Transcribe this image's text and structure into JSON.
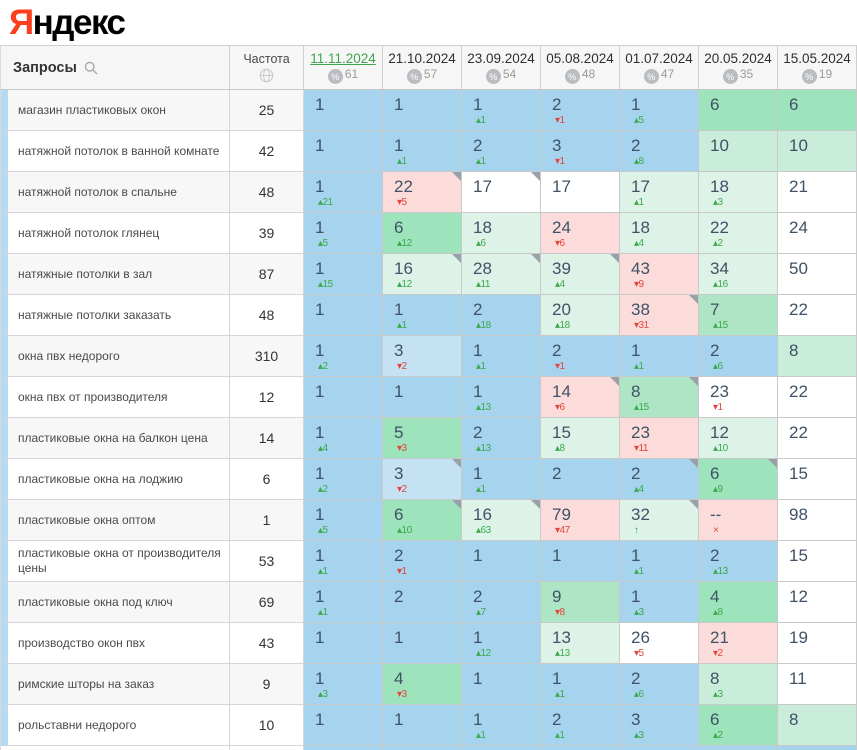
{
  "logo": {
    "first_letter": "Я",
    "rest": "ндекс"
  },
  "table": {
    "query_header": "Запросы",
    "frequency_header": "Частота",
    "dates": [
      {
        "label": "11.11.2024",
        "visibility": "61",
        "active": true
      },
      {
        "label": "21.10.2024",
        "visibility": "57",
        "active": false
      },
      {
        "label": "23.09.2024",
        "visibility": "54",
        "active": false
      },
      {
        "label": "05.08.2024",
        "visibility": "48",
        "active": false
      },
      {
        "label": "01.07.2024",
        "visibility": "47",
        "active": false
      },
      {
        "label": "20.05.2024",
        "visibility": "35",
        "active": false
      },
      {
        "label": "15.05.2024",
        "visibility": "19",
        "active": false
      }
    ],
    "rows": [
      {
        "query": "магазин пластиковых окон",
        "frequency": "25",
        "cells": [
          {
            "v": "1",
            "bg": "b"
          },
          {
            "v": "1",
            "bg": "b"
          },
          {
            "v": "1",
            "d": "▴1",
            "dc": "up",
            "bg": "b"
          },
          {
            "v": "2",
            "d": "▾1",
            "dc": "down",
            "bg": "b"
          },
          {
            "v": "1",
            "d": "▴5",
            "dc": "up",
            "bg": "b"
          },
          {
            "v": "6",
            "bg": "g"
          },
          {
            "v": "6",
            "bg": "g"
          }
        ]
      },
      {
        "query": "натяжной потолок в ванной комнате",
        "frequency": "42",
        "cells": [
          {
            "v": "1",
            "bg": "b"
          },
          {
            "v": "1",
            "d": "▴1",
            "dc": "up",
            "bg": "b"
          },
          {
            "v": "2",
            "d": "▴1",
            "dc": "up",
            "bg": "b"
          },
          {
            "v": "3",
            "d": "▾1",
            "dc": "down",
            "bg": "b"
          },
          {
            "v": "2",
            "d": "▴8",
            "dc": "up",
            "bg": "b"
          },
          {
            "v": "10",
            "bg": "lg"
          },
          {
            "v": "10",
            "bg": "lg"
          }
        ]
      },
      {
        "query": "натяжной потолок в спальне",
        "frequency": "48",
        "cells": [
          {
            "v": "1",
            "d": "▴21",
            "dc": "up",
            "bg": "b"
          },
          {
            "v": "22",
            "d": "▾5",
            "dc": "down",
            "bg": "p",
            "tr": true
          },
          {
            "v": "17",
            "bg": "w",
            "tr": true
          },
          {
            "v": "17",
            "bg": "w"
          },
          {
            "v": "17",
            "d": "▴1",
            "dc": "up",
            "bg": "vlg"
          },
          {
            "v": "18",
            "d": "▴3",
            "dc": "up",
            "bg": "vlg"
          },
          {
            "v": "21",
            "bg": "w"
          }
        ]
      },
      {
        "query": "натяжной потолок глянец",
        "frequency": "39",
        "cells": [
          {
            "v": "1",
            "d": "▴5",
            "dc": "up",
            "bg": "b"
          },
          {
            "v": "6",
            "d": "▴12",
            "dc": "up",
            "bg": "g"
          },
          {
            "v": "18",
            "d": "▴6",
            "dc": "up",
            "bg": "vlg"
          },
          {
            "v": "24",
            "d": "▾6",
            "dc": "down",
            "bg": "p"
          },
          {
            "v": "18",
            "d": "▴4",
            "dc": "up",
            "bg": "vlg"
          },
          {
            "v": "22",
            "d": "▴2",
            "dc": "up",
            "bg": "vlg"
          },
          {
            "v": "24",
            "bg": "w"
          }
        ]
      },
      {
        "query": "натяжные потолки в зал",
        "frequency": "87",
        "cells": [
          {
            "v": "1",
            "d": "▴15",
            "dc": "up",
            "bg": "b"
          },
          {
            "v": "16",
            "d": "▴12",
            "dc": "up",
            "bg": "vlg",
            "tr": true
          },
          {
            "v": "28",
            "d": "▴11",
            "dc": "up",
            "bg": "vlg",
            "tr": true
          },
          {
            "v": "39",
            "d": "▴4",
            "dc": "up",
            "bg": "vlg",
            "tr": true
          },
          {
            "v": "43",
            "d": "▾9",
            "dc": "down",
            "bg": "p"
          },
          {
            "v": "34",
            "d": "▴16",
            "dc": "up",
            "bg": "vlg"
          },
          {
            "v": "50",
            "bg": "w"
          }
        ]
      },
      {
        "query": "натяжные потолки заказать",
        "frequency": "48",
        "cells": [
          {
            "v": "1",
            "bg": "b"
          },
          {
            "v": "1",
            "d": "▴1",
            "dc": "up",
            "bg": "b"
          },
          {
            "v": "2",
            "d": "▴18",
            "dc": "up",
            "bg": "b"
          },
          {
            "v": "20",
            "d": "▴18",
            "dc": "up",
            "bg": "vlg"
          },
          {
            "v": "38",
            "d": "▾31",
            "dc": "down",
            "bg": "p",
            "tr": true
          },
          {
            "v": "7",
            "d": "▴15",
            "dc": "up",
            "bg": "g2"
          },
          {
            "v": "22",
            "bg": "w"
          }
        ]
      },
      {
        "query": "окна пвх недорого",
        "frequency": "310",
        "cells": [
          {
            "v": "1",
            "d": "▴2",
            "dc": "up",
            "bg": "b"
          },
          {
            "v": "3",
            "d": "▾2",
            "dc": "down",
            "bg": "lb"
          },
          {
            "v": "1",
            "d": "▴1",
            "dc": "up",
            "bg": "b"
          },
          {
            "v": "2",
            "d": "▾1",
            "dc": "down",
            "bg": "b"
          },
          {
            "v": "1",
            "d": "▴1",
            "dc": "up",
            "bg": "b"
          },
          {
            "v": "2",
            "d": "▴6",
            "dc": "up",
            "bg": "b"
          },
          {
            "v": "8",
            "bg": "lg"
          }
        ]
      },
      {
        "query": "окна пвх от производителя",
        "frequency": "12",
        "cells": [
          {
            "v": "1",
            "bg": "b"
          },
          {
            "v": "1",
            "bg": "b"
          },
          {
            "v": "1",
            "d": "▴13",
            "dc": "up",
            "bg": "b"
          },
          {
            "v": "14",
            "d": "▾6",
            "dc": "down",
            "bg": "p",
            "tr": true
          },
          {
            "v": "8",
            "d": "▴15",
            "dc": "up",
            "bg": "g2",
            "tr": true
          },
          {
            "v": "23",
            "d": "▾1",
            "dc": "down",
            "bg": "w"
          },
          {
            "v": "22",
            "bg": "w"
          }
        ]
      },
      {
        "query": "пластиковые окна на балкон цена",
        "frequency": "14",
        "cells": [
          {
            "v": "1",
            "d": "▴4",
            "dc": "up",
            "bg": "b"
          },
          {
            "v": "5",
            "d": "▾3",
            "dc": "down",
            "bg": "g"
          },
          {
            "v": "2",
            "d": "▴13",
            "dc": "up",
            "bg": "b"
          },
          {
            "v": "15",
            "d": "▴8",
            "dc": "up",
            "bg": "vlg"
          },
          {
            "v": "23",
            "d": "▾11",
            "dc": "down",
            "bg": "p"
          },
          {
            "v": "12",
            "d": "▴10",
            "dc": "up",
            "bg": "vlg"
          },
          {
            "v": "22",
            "bg": "w"
          }
        ]
      },
      {
        "query": "пластиковые окна на лоджию",
        "frequency": "6",
        "cells": [
          {
            "v": "1",
            "d": "▴2",
            "dc": "up",
            "bg": "b"
          },
          {
            "v": "3",
            "d": "▾2",
            "dc": "down",
            "bg": "lb",
            "tr": true
          },
          {
            "v": "1",
            "d": "▴1",
            "dc": "up",
            "bg": "b"
          },
          {
            "v": "2",
            "bg": "b"
          },
          {
            "v": "2",
            "d": "▴4",
            "dc": "up",
            "bg": "b",
            "tr": true
          },
          {
            "v": "6",
            "d": "▴9",
            "dc": "up",
            "bg": "g",
            "tr": true
          },
          {
            "v": "15",
            "bg": "w"
          }
        ]
      },
      {
        "query": "пластиковые окна оптом",
        "frequency": "1",
        "cells": [
          {
            "v": "1",
            "d": "▴5",
            "dc": "up",
            "bg": "b"
          },
          {
            "v": "6",
            "d": "▴10",
            "dc": "up",
            "bg": "g",
            "tr": true
          },
          {
            "v": "16",
            "d": "▴63",
            "dc": "up",
            "bg": "vlg",
            "tr": true
          },
          {
            "v": "79",
            "d": "▾47",
            "dc": "down",
            "bg": "p"
          },
          {
            "v": "32",
            "d": "↑",
            "dc": "up",
            "bg": "vlg",
            "tr": true
          },
          {
            "v": "--",
            "d": "×",
            "dc": "down",
            "bg": "p"
          },
          {
            "v": "98",
            "bg": "w"
          }
        ]
      },
      {
        "query": "пластиковые окна от производителя цены",
        "frequency": "53",
        "cells": [
          {
            "v": "1",
            "d": "▴1",
            "dc": "up",
            "bg": "b"
          },
          {
            "v": "2",
            "d": "▾1",
            "dc": "down",
            "bg": "b"
          },
          {
            "v": "1",
            "bg": "b"
          },
          {
            "v": "1",
            "bg": "b"
          },
          {
            "v": "1",
            "d": "▴1",
            "dc": "up",
            "bg": "b"
          },
          {
            "v": "2",
            "d": "▴13",
            "dc": "up",
            "bg": "b"
          },
          {
            "v": "15",
            "bg": "w"
          }
        ]
      },
      {
        "query": "пластиковые окна под ключ",
        "frequency": "69",
        "cells": [
          {
            "v": "1",
            "d": "▴1",
            "dc": "up",
            "bg": "b"
          },
          {
            "v": "2",
            "bg": "b"
          },
          {
            "v": "2",
            "d": "▴7",
            "dc": "up",
            "bg": "b"
          },
          {
            "v": "9",
            "d": "▾8",
            "dc": "down",
            "bg": "g2"
          },
          {
            "v": "1",
            "d": "▴3",
            "dc": "up",
            "bg": "b"
          },
          {
            "v": "4",
            "d": "▴8",
            "dc": "up",
            "bg": "g"
          },
          {
            "v": "12",
            "bg": "w"
          }
        ]
      },
      {
        "query": "производство окон пвх",
        "frequency": "43",
        "cells": [
          {
            "v": "1",
            "bg": "b"
          },
          {
            "v": "1",
            "bg": "b"
          },
          {
            "v": "1",
            "d": "▴12",
            "dc": "up",
            "bg": "b"
          },
          {
            "v": "13",
            "d": "▴13",
            "dc": "up",
            "bg": "vlg"
          },
          {
            "v": "26",
            "d": "▾5",
            "dc": "down",
            "bg": "w"
          },
          {
            "v": "21",
            "d": "▾2",
            "dc": "down",
            "bg": "p"
          },
          {
            "v": "19",
            "bg": "w"
          }
        ]
      },
      {
        "query": "римские шторы на заказ",
        "frequency": "9",
        "cells": [
          {
            "v": "1",
            "d": "▴3",
            "dc": "up",
            "bg": "b"
          },
          {
            "v": "4",
            "d": "▾3",
            "dc": "down",
            "bg": "g"
          },
          {
            "v": "1",
            "bg": "b"
          },
          {
            "v": "1",
            "d": "▴1",
            "dc": "up",
            "bg": "b"
          },
          {
            "v": "2",
            "d": "▴6",
            "dc": "up",
            "bg": "b"
          },
          {
            "v": "8",
            "d": "▴3",
            "dc": "up",
            "bg": "lg"
          },
          {
            "v": "11",
            "bg": "w"
          }
        ]
      },
      {
        "query": "рольставни недорого",
        "frequency": "10",
        "cells": [
          {
            "v": "1",
            "bg": "b"
          },
          {
            "v": "1",
            "bg": "b"
          },
          {
            "v": "1",
            "d": "▴1",
            "dc": "up",
            "bg": "b"
          },
          {
            "v": "2",
            "d": "▴1",
            "dc": "up",
            "bg": "b"
          },
          {
            "v": "3",
            "d": "▴3",
            "dc": "up",
            "bg": "b"
          },
          {
            "v": "6",
            "d": "▴2",
            "dc": "up",
            "bg": "g"
          },
          {
            "v": "8",
            "bg": "lg"
          }
        ]
      }
    ]
  },
  "colors": {
    "logo_red": "#fc3f1d",
    "active_date_green": "#3fa44f",
    "delta_up_green": "#3aaa4c",
    "delta_down_red": "#e2453c",
    "cell_blue": "#a6d4ee",
    "cell_light_blue": "#c4e2f4",
    "cell_green": "#9de3bb",
    "cell_green_soft": "#aee6c5",
    "cell_light_green": "#c9edda",
    "cell_pale_green": "#def3e7",
    "cell_pink": "#fbdcda",
    "row_strip_blue": "#b5daf1",
    "corner_marker_gray": "#98a0a8"
  },
  "icons": {
    "search": "search-icon",
    "globe": "globe-icon",
    "percent_badge": "%"
  }
}
